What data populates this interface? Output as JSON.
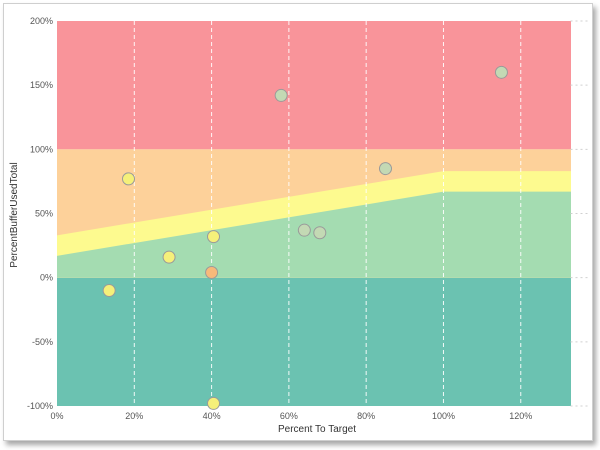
{
  "chart_data": {
    "type": "scatter",
    "xlabel": "Percent To Target",
    "ylabel": "PercentBufferUsedTotal",
    "xlim": [
      0,
      133
    ],
    "ylim": [
      -100,
      200
    ],
    "xticks": [
      0,
      20,
      40,
      60,
      80,
      100,
      120
    ],
    "xtick_labels": [
      "0%",
      "20%",
      "40%",
      "60%",
      "80%",
      "100%",
      "120%"
    ],
    "yticks": [
      -100,
      -50,
      0,
      50,
      100,
      150,
      200
    ],
    "ytick_labels": [
      "-100%",
      "-50%",
      "0%",
      "50%",
      "100%",
      "150%",
      "200%"
    ],
    "grid": {
      "vertical": true,
      "horizontal": true,
      "style": "dashed"
    },
    "zones": {
      "teal": {
        "color": "#6bc2b1",
        "from": -100,
        "to": 0
      },
      "red": {
        "color": "#f9949a",
        "from": 100,
        "to": 200
      },
      "orange_fill": "#fdd19a",
      "yellow_band": "#fdfa8f",
      "green_fill": "#a4dcb1",
      "band_lower": [
        [
          0,
          17
        ],
        [
          100,
          67
        ],
        [
          133,
          67
        ]
      ],
      "band_upper": [
        [
          0,
          33
        ],
        [
          100,
          83
        ],
        [
          133,
          83
        ]
      ]
    },
    "points": [
      {
        "x": 13.5,
        "y": -10,
        "color": "#f5f07a"
      },
      {
        "x": 18.5,
        "y": 77,
        "color": "#f5f07a"
      },
      {
        "x": 29,
        "y": 16,
        "color": "#f5f07a"
      },
      {
        "x": 40,
        "y": 4,
        "color": "#f8b97a"
      },
      {
        "x": 40.5,
        "y": 32,
        "color": "#f5f07a"
      },
      {
        "x": 40.5,
        "y": -98,
        "color": "#f5f07a"
      },
      {
        "x": 58,
        "y": 142,
        "color": "#c3d9b4"
      },
      {
        "x": 64,
        "y": 37,
        "color": "#c3d9b4"
      },
      {
        "x": 68,
        "y": 35,
        "color": "#c3d9b4"
      },
      {
        "x": 85,
        "y": 85,
        "color": "#c3d9b4"
      },
      {
        "x": 115,
        "y": 160,
        "color": "#c3d9b4"
      }
    ]
  }
}
